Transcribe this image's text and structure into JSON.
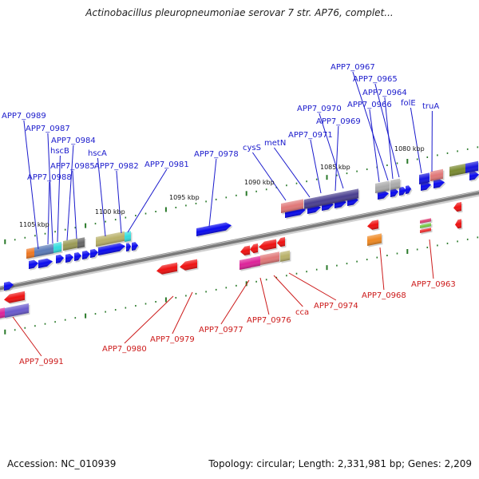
{
  "title": "Actinobacillus pleuropneumoniae serovar 7 str. AP76, complet...",
  "colors": {
    "forward_label": "#1a1acc",
    "reverse_label": "#cc1a1a",
    "forward_arrow": "#0a0aee",
    "reverse_arrow": "#ee1111",
    "backbone": "#7a7a7a",
    "tick": "#2a7a2a"
  },
  "scale_labels": [
    "1105 kbp",
    "1100 kbp",
    "1095 kbp",
    "1090 kbp",
    "1085 kbp",
    "1080 kbp"
  ],
  "forward_genes": [
    "APP7_0989",
    "APP7_0987",
    "hscB",
    "APP7_0984",
    "APP7_0985",
    "APP7_0988",
    "hscA",
    "APP7_0982",
    "APP7_0981",
    "APP7_0978",
    "cysS",
    "metN",
    "APP7_0971",
    "APP7_0969",
    "APP7_0970",
    "APP7_0966",
    "APP7_0964",
    "APP7_0965",
    "APP7_0967",
    "folE",
    "truA"
  ],
  "reverse_genes": [
    "APP7_0991",
    "APP7_0980",
    "APP7_0979",
    "APP7_0977",
    "APP7_0976",
    "cca",
    "APP7_0974",
    "APP7_0968",
    "APP7_0963"
  ],
  "footer": {
    "accession": "Accession: NC_010939",
    "topology": "Topology: circular; Length: 2,331,981 bp; Genes: 2,209"
  }
}
